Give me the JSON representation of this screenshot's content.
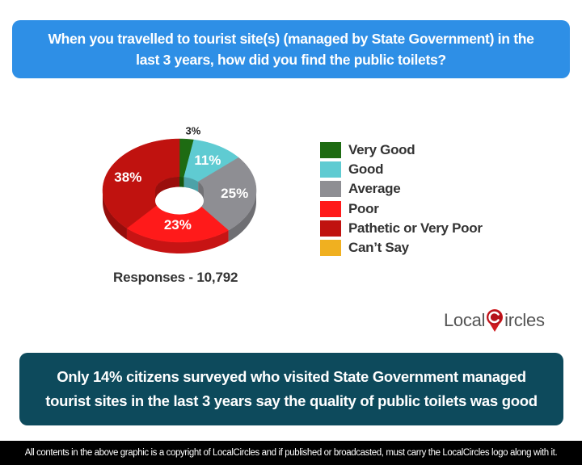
{
  "title": "When you travelled to tourist site(s) (managed by State Government) in the last 3 years, how did you find the public toilets?",
  "responses_label": "Responses - 10,792",
  "summary": "Only 14% citizens surveyed who visited State Government managed tourist sites in the last 3 years say the quality of public toilets was good",
  "footer": "All contents in the above graphic is a copyright of LocalCircles and if published or broadcasted, must carry the LocalCircles logo along with it.",
  "logo": {
    "part1": "Local",
    "part2": "ircles",
    "icon": "map-pin-c-icon"
  },
  "colors": {
    "title_bg": "#2e8fe6",
    "summary_bg": "#0d4a5c",
    "footer_bg": "#000000"
  },
  "chart_data": {
    "type": "pie",
    "subtype": "donut-3d",
    "title": "When you travelled to tourist site(s) (managed by State Government) in the last 3 years, how did you find the public toilets?",
    "categories": [
      "Very Good",
      "Good",
      "Average",
      "Poor",
      "Pathetic or Very Poor",
      "Can't Say"
    ],
    "values": [
      3,
      11,
      25,
      23,
      38,
      0
    ],
    "labels": [
      "3%",
      "11%",
      "25%",
      "23%",
      "38%",
      ""
    ],
    "colors": [
      "#1e6b12",
      "#5fcbd2",
      "#8e8e93",
      "#ff1a1a",
      "#c0120f",
      "#f0b020"
    ],
    "legend_position": "right",
    "total_responses": 10792
  },
  "legend": [
    {
      "label": "Very Good",
      "color": "#1e6b12"
    },
    {
      "label": "Good",
      "color": "#5fcbd2"
    },
    {
      "label": "Average",
      "color": "#8e8e93"
    },
    {
      "label": "Poor",
      "color": "#ff1a1a"
    },
    {
      "label": "Pathetic or Very Poor",
      "color": "#c0120f"
    },
    {
      "label": "Can’t Say",
      "color": "#f0b020"
    }
  ]
}
